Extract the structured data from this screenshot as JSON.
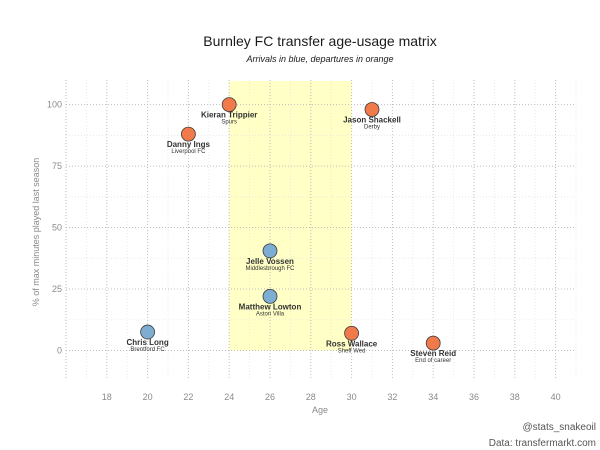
{
  "chart_data": {
    "type": "scatter",
    "title": "Burnley FC transfer age-usage matrix",
    "subtitle": "Arrivals in blue, departures in orange",
    "xlabel": "Age",
    "ylabel": "% of max minutes played last season",
    "xlim": [
      16,
      41
    ],
    "ylim": [
      -12,
      110
    ],
    "xticks": [
      18,
      20,
      22,
      24,
      26,
      28,
      30,
      32,
      34,
      36,
      38,
      40
    ],
    "yticks": [
      0,
      25,
      50,
      75,
      100
    ],
    "grid": true,
    "highlight_band": {
      "x": [
        24,
        30
      ],
      "color": "#ffffc6"
    },
    "colors": {
      "arrivals": "#7eadd3",
      "departures": "#f07a4a",
      "band": "#ffffc6"
    },
    "points": [
      {
        "name": "Kieran Trippier",
        "club": "Spurs",
        "x": 24,
        "y": 100,
        "group": "departures"
      },
      {
        "name": "Jason Shackell",
        "club": "Derby",
        "x": 31,
        "y": 98,
        "group": "departures"
      },
      {
        "name": "Danny Ings",
        "club": "Liverpool FC",
        "x": 22,
        "y": 88,
        "group": "departures"
      },
      {
        "name": "Jelle Vossen",
        "club": "Middlesbrough FC",
        "x": 26,
        "y": 40.5,
        "group": "arrivals"
      },
      {
        "name": "Matthew Lowton",
        "club": "Aston Villa",
        "x": 26,
        "y": 22,
        "group": "arrivals"
      },
      {
        "name": "Chris Long",
        "club": "Brentford FC",
        "x": 20,
        "y": 7.5,
        "group": "arrivals"
      },
      {
        "name": "Ross Wallace",
        "club": "Sheff Wed",
        "x": 30,
        "y": 7,
        "group": "departures"
      },
      {
        "name": "Steven Reid",
        "club": "End of career",
        "x": 34,
        "y": 3,
        "group": "departures"
      }
    ]
  },
  "caption": {
    "handle": "@stats_snakeoil",
    "source": "Data: transfermarkt.com"
  }
}
